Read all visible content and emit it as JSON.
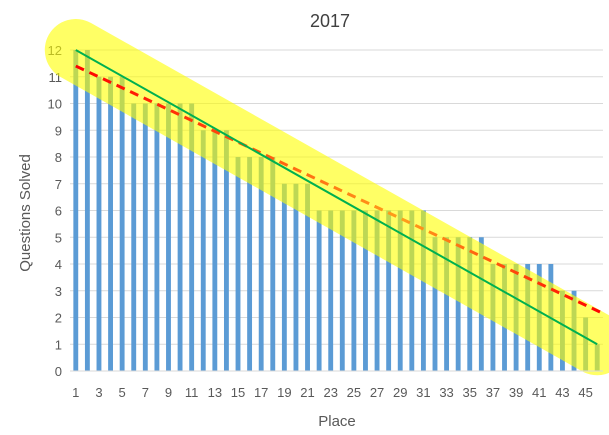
{
  "chart_data": {
    "type": "bar",
    "title": "2017",
    "xlabel": "Place",
    "ylabel": "Questions Solved",
    "ylim": [
      0,
      12
    ],
    "yticks": [
      "0",
      "1",
      "2",
      "3",
      "4",
      "5",
      "6",
      "7",
      "8",
      "9",
      "10",
      "11",
      "12"
    ],
    "xticks": [
      "1",
      "3",
      "5",
      "7",
      "9",
      "11",
      "13",
      "15",
      "17",
      "19",
      "21",
      "23",
      "25",
      "27",
      "29",
      "31",
      "33",
      "35",
      "37",
      "39",
      "41",
      "43",
      "45"
    ],
    "grid": true,
    "x": [
      1,
      2,
      3,
      4,
      5,
      6,
      7,
      8,
      9,
      10,
      11,
      12,
      13,
      14,
      15,
      16,
      17,
      18,
      19,
      20,
      21,
      22,
      23,
      24,
      25,
      26,
      27,
      28,
      29,
      30,
      31,
      32,
      33,
      34,
      35,
      36,
      37,
      38,
      39,
      40,
      41,
      42,
      43,
      44,
      45,
      46
    ],
    "values": [
      12,
      12,
      11,
      11,
      11,
      10,
      10,
      10,
      10,
      10,
      10,
      9,
      9,
      9,
      8,
      8,
      8,
      8,
      7,
      7,
      7,
      6,
      6,
      6,
      6,
      6,
      6,
      6,
      6,
      6,
      6,
      5,
      5,
      5,
      5,
      5,
      4,
      4,
      4,
      4,
      4,
      4,
      3,
      3,
      2,
      1
    ],
    "bar_color": "#5b9bd5",
    "lines": [
      {
        "style": "solid",
        "color": "#00b050",
        "from": [
          1,
          12
        ],
        "to": [
          46,
          1
        ]
      },
      {
        "style": "dashed",
        "color": "#ff0000",
        "from": [
          1,
          11.4
        ],
        "to": [
          46,
          2.3
        ]
      }
    ],
    "highlight_band": {
      "color": "#ffff00"
    }
  }
}
